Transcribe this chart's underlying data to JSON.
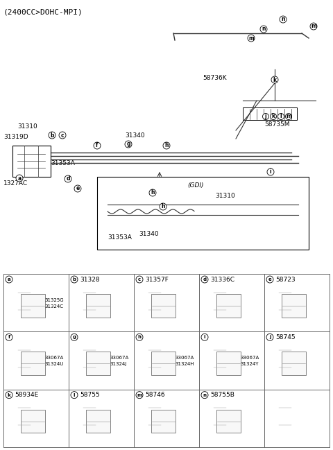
{
  "title_text": "(2400CC>DOHC-MPI)",
  "bg_color": "#ffffff",
  "fig_width": 4.8,
  "fig_height": 6.49,
  "dpi": 100,
  "diagram_region": [
    0,
    0,
    1,
    0.615
  ],
  "table_region": [
    0,
    0,
    1,
    0.385
  ],
  "table_rows": [
    {
      "cells": [
        {
          "label": "a",
          "part": "",
          "subparts": [
            "31325G",
            "31324C"
          ],
          "has_circle": true
        },
        {
          "label": "b",
          "part": "31328",
          "subparts": [],
          "has_circle": true
        },
        {
          "label": "c",
          "part": "31357F",
          "subparts": [],
          "has_circle": true
        },
        {
          "label": "d",
          "part": "31336C",
          "subparts": [],
          "has_circle": true
        },
        {
          "label": "e",
          "part": "58723",
          "subparts": [],
          "has_circle": true
        }
      ]
    },
    {
      "cells": [
        {
          "label": "f",
          "part": "",
          "subparts": [
            "33067A",
            "31324U"
          ],
          "has_circle": true
        },
        {
          "label": "g",
          "part": "",
          "subparts": [
            "33067A",
            "31324J"
          ],
          "has_circle": true
        },
        {
          "label": "h",
          "part": "",
          "subparts": [
            "33067A",
            "31324H"
          ],
          "has_circle": true
        },
        {
          "label": "i",
          "part": "",
          "subparts": [
            "33067A",
            "31324Y"
          ],
          "has_circle": true
        },
        {
          "label": "j",
          "part": "58745",
          "subparts": [],
          "has_circle": true
        }
      ]
    },
    {
      "cells": [
        {
          "label": "k",
          "part": "58934E",
          "subparts": [],
          "has_circle": true
        },
        {
          "label": "l",
          "part": "58755",
          "subparts": [],
          "has_circle": true
        },
        {
          "label": "m",
          "part": "58746",
          "subparts": [],
          "has_circle": true
        },
        {
          "label": "n",
          "part": "58755B",
          "subparts": [],
          "has_circle": true
        },
        {
          "label": "",
          "part": "",
          "subparts": [],
          "has_circle": false
        }
      ]
    }
  ],
  "schematic_labels": {
    "part_numbers_top": [
      "58736K",
      "58735M"
    ],
    "part_numbers_main": [
      "31310",
      "31319D",
      "31353A",
      "1327AC",
      "31340",
      "31310",
      "31340",
      "31353A"
    ],
    "callout_letters_top": [
      "n",
      "m",
      "n",
      "m",
      "n",
      "m",
      "k",
      "l",
      "j",
      "k",
      "l",
      "m",
      "k",
      "h",
      "i",
      "j"
    ],
    "callout_letters_main": [
      "a",
      "b",
      "c",
      "f",
      "g",
      "d",
      "e",
      "h",
      "h",
      "h",
      "i"
    ]
  },
  "line_color": "#222222",
  "box_color": "#000000",
  "table_line_color": "#555555",
  "label_fontsize": 7,
  "title_fontsize": 8,
  "part_fontsize": 6.5
}
